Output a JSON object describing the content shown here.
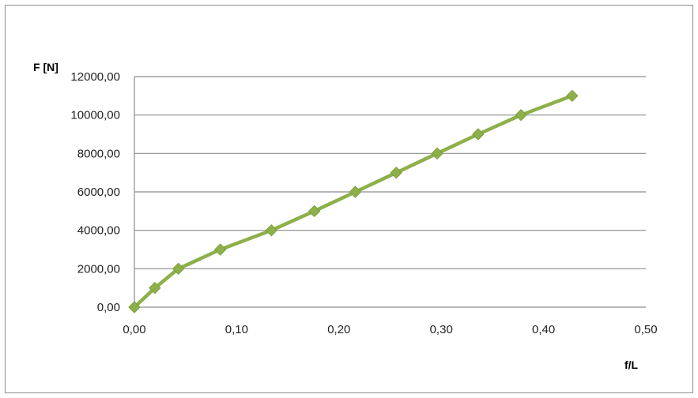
{
  "chart_data": {
    "type": "line",
    "title": "",
    "xlabel": "f/L",
    "ylabel": "F [N]",
    "xlim": [
      0,
      0.5
    ],
    "ylim": [
      0,
      12000
    ],
    "x_ticks": [
      "0,00",
      "0,10",
      "0,20",
      "0,30",
      "0,40",
      "0,50"
    ],
    "y_ticks": [
      "0,00",
      "2000,00",
      "4000,00",
      "6000,00",
      "8000,00",
      "10000,00",
      "12000,00"
    ],
    "grid": "horizontal",
    "legend": "none",
    "series": [
      {
        "color": "#8db04a",
        "marker": "diamond",
        "x": [
          0.0,
          0.02,
          0.043,
          0.084,
          0.134,
          0.176,
          0.216,
          0.256,
          0.296,
          0.336,
          0.378,
          0.428
        ],
        "y": [
          0,
          1000,
          2000,
          3000,
          4000,
          5000,
          6000,
          7000,
          8000,
          9000,
          10000,
          11000
        ]
      }
    ]
  }
}
